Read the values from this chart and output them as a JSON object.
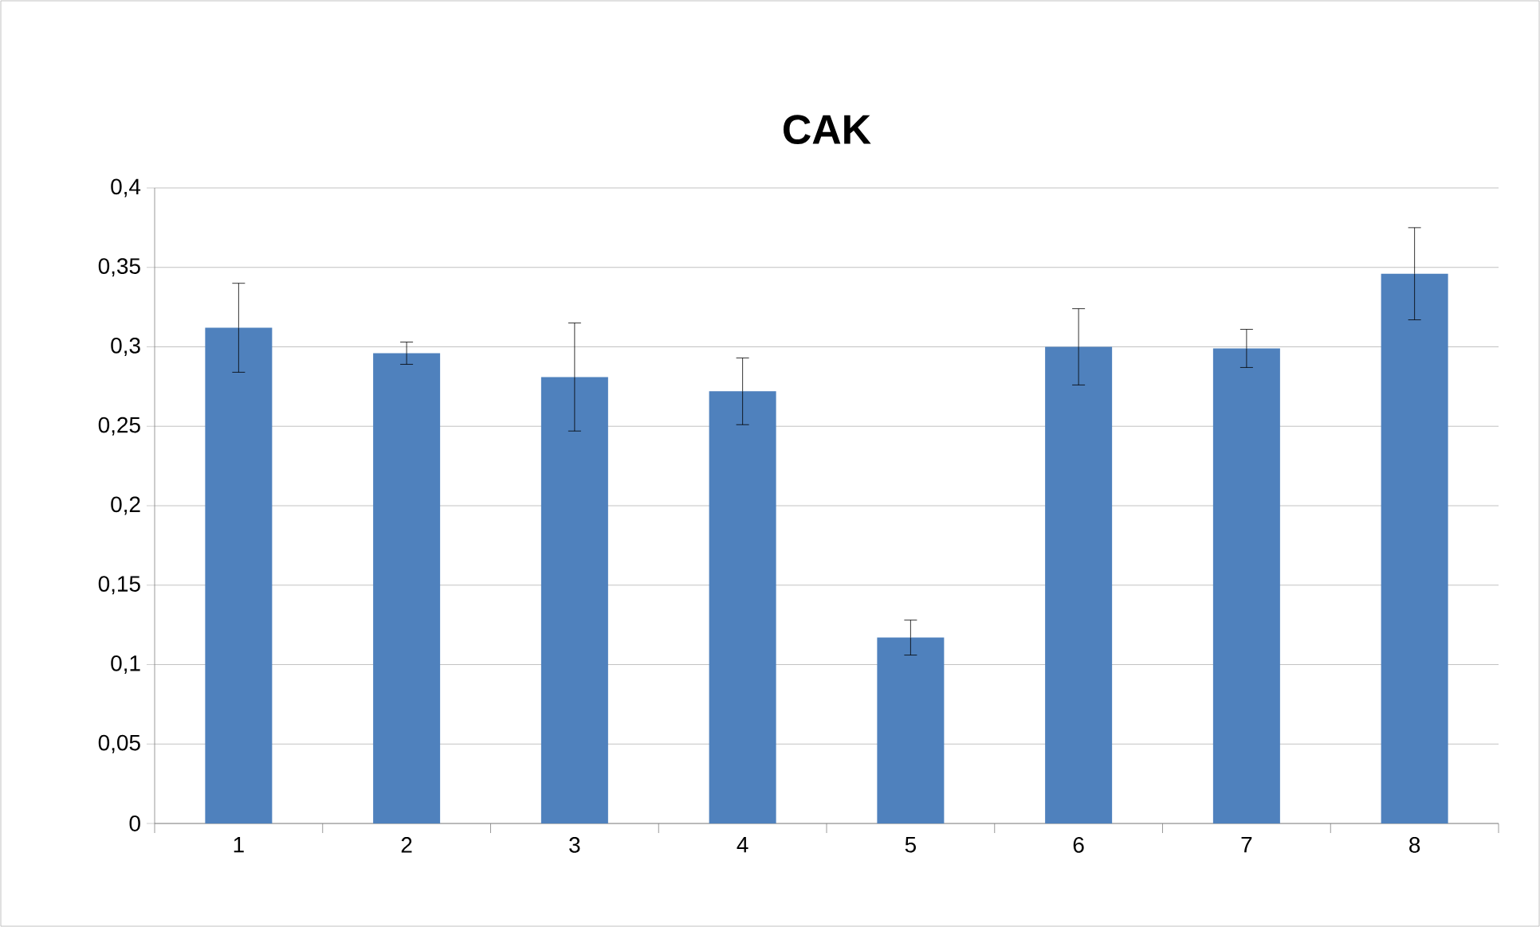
{
  "chart_data": {
    "type": "bar",
    "title": "CAK",
    "categories": [
      "1",
      "2",
      "3",
      "4",
      "5",
      "6",
      "7",
      "8"
    ],
    "values": [
      0.312,
      0.296,
      0.281,
      0.272,
      0.117,
      0.3,
      0.299,
      0.346
    ],
    "errors": [
      0.028,
      0.007,
      0.034,
      0.021,
      0.011,
      0.024,
      0.012,
      0.029
    ],
    "color": "#4f81bd",
    "ylim": [
      0,
      0.4
    ],
    "yticks": [
      0,
      {
        "value": 0.05,
        "label": "0,05"
      },
      {
        "value": 0.1,
        "label": "0,1"
      },
      {
        "value": 0.15,
        "label": "0,15"
      },
      {
        "value": 0.2,
        "label": "0,2"
      },
      {
        "value": 0.25,
        "label": "0,25"
      },
      {
        "value": 0.3,
        "label": "0,3"
      },
      {
        "value": 0.35,
        "label": "0,35"
      },
      {
        "value": 0.4,
        "label": "0,4"
      }
    ],
    "grid": "y"
  }
}
